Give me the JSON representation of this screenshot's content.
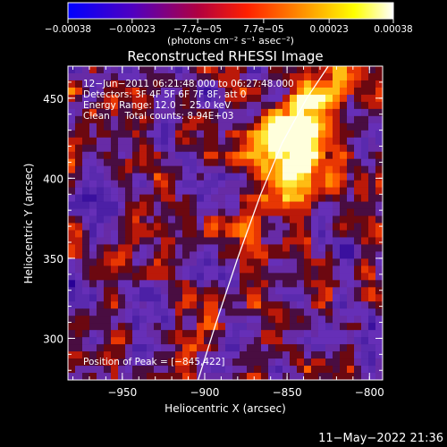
{
  "chart_data": [
    {
      "type": "colorbar",
      "units_label": "(photons cm⁻² s⁻¹ asec⁻²)",
      "range": [
        -0.00038,
        0.00038
      ],
      "ticks": [
        {
          "value": -0.00038,
          "label": "−0.00038"
        },
        {
          "value": -0.00023,
          "label": "−0.00023"
        },
        {
          "value": -7.7e-05,
          "label": "−7.7e−05"
        },
        {
          "value": 7.7e-05,
          "label": "7.7e−05"
        },
        {
          "value": 0.00023,
          "label": "0.00023"
        },
        {
          "value": 0.00038,
          "label": "0.00038"
        }
      ],
      "colors": [
        "#0000ff",
        "#5000c0",
        "#b00040",
        "#ff2000",
        "#ff9000",
        "#ffff00",
        "#ffffff"
      ]
    },
    {
      "type": "heatmap",
      "title": "Reconstructed RHESSI Image",
      "xlabel": "Heliocentric X (arcsec)",
      "ylabel": "Heliocentric Y (arcsec)",
      "xlim": [
        -983,
        -792
      ],
      "ylim": [
        274,
        470
      ],
      "x_ticks": [
        {
          "value": -950,
          "label": "−950"
        },
        {
          "value": -900,
          "label": "−900"
        },
        {
          "value": -850,
          "label": "−850"
        },
        {
          "value": -800,
          "label": "−800"
        }
      ],
      "y_ticks": [
        {
          "value": 300,
          "label": "300"
        },
        {
          "value": 350,
          "label": "350"
        },
        {
          "value": 400,
          "label": "400"
        },
        {
          "value": 450,
          "label": "450"
        }
      ],
      "annotations": [
        "12−Jun−2011 06:21:48.000 to 06:27:48.000",
        "Detectors: 3F 4F 5F 6F 7F 8F, att 0",
        "Energy Range: 12.0 − 25.0 keV",
        "Clean     Total counts: 8.94E+03"
      ],
      "peak_label": "Position of Peak = [−845,422]",
      "peak": {
        "x": -845,
        "y": 422
      },
      "limb": [
        {
          "x": -904,
          "y": 274
        },
        {
          "x": -893,
          "y": 310
        },
        {
          "x": -880,
          "y": 350
        },
        {
          "x": -866,
          "y": 390
        },
        {
          "x": -853,
          "y": 422
        },
        {
          "x": -838,
          "y": 450
        },
        {
          "x": -825,
          "y": 470
        }
      ],
      "grid": false
    }
  ],
  "footer": {
    "timestamp": "11−May−2022 21:36"
  }
}
